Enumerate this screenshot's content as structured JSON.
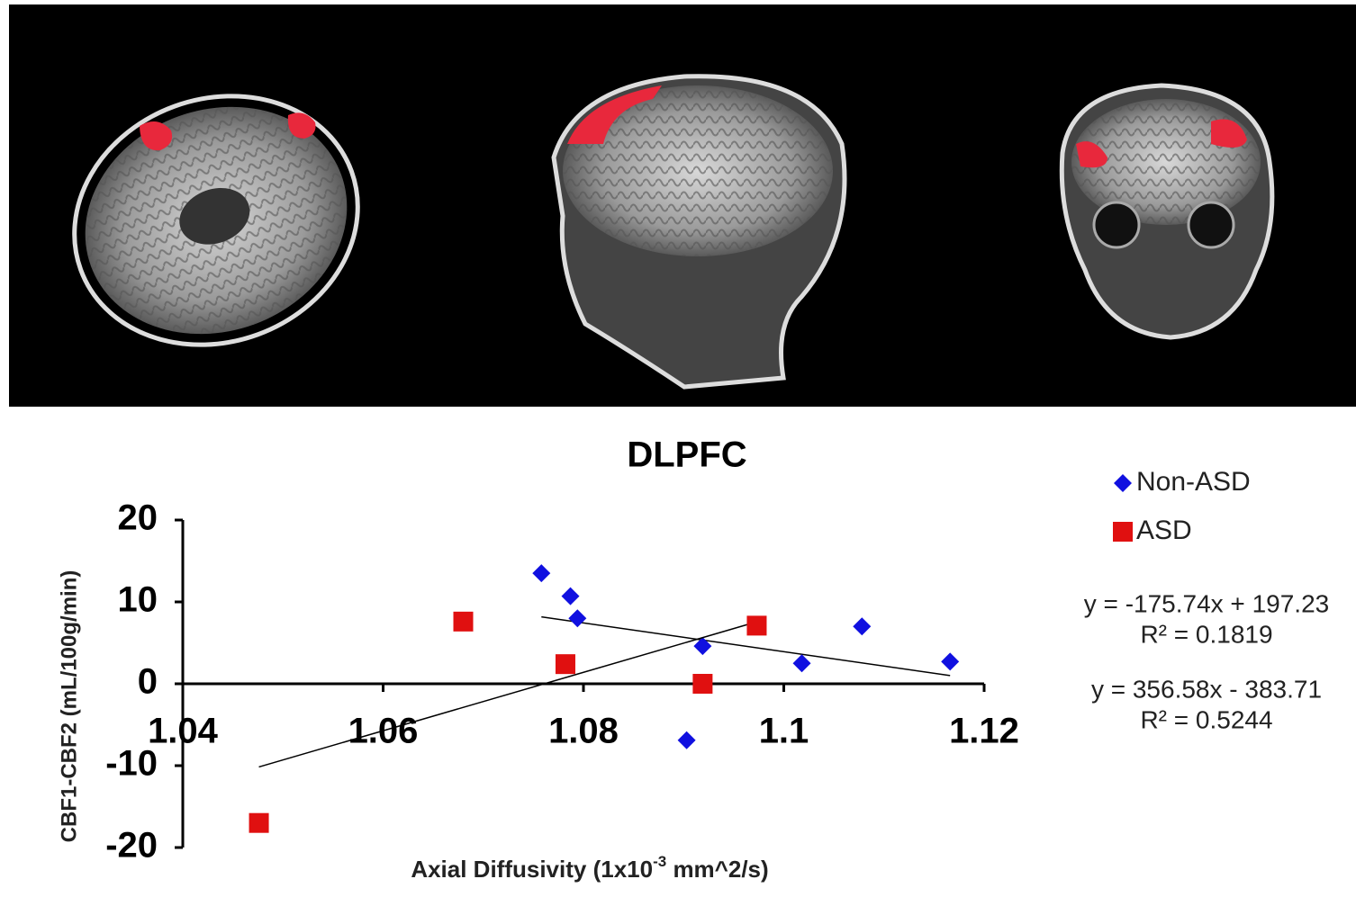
{
  "chart_data": {
    "type": "scatter",
    "title": "DLPFC",
    "xlabel": [
      "Axial Diffusivity  (1x10",
      "-3",
      " mm^2/s)"
    ],
    "ylabel": "CBF1-CBF2  (mL/100g/min)",
    "xlim": [
      1.04,
      1.12
    ],
    "xticks": [
      1.04,
      1.06,
      1.08,
      1.1,
      1.12
    ],
    "ylim": [
      -20,
      20
    ],
    "yticks": [
      -20,
      -10,
      0,
      10,
      20
    ],
    "legend": "right",
    "series": [
      {
        "name": "Non-ASD",
        "color": "#1010e0",
        "marker": "diamond",
        "x": [
          1.0758,
          1.0787,
          1.0794,
          1.0919,
          1.0903,
          1.1018,
          1.1078,
          1.1166
        ],
        "values": [
          13.5,
          10.7,
          8.0,
          4.6,
          -6.9,
          2.5,
          7.0,
          2.7
        ],
        "trendline": {
          "slope": -175.74,
          "intercept": 197.23,
          "equation": "y = -175.74x + 197.23",
          "r_squared": "R² = 0.1819"
        }
      },
      {
        "name": "ASD",
        "color": "#e01010",
        "marker": "square",
        "x": [
          1.0476,
          1.068,
          1.0782,
          1.0919,
          1.0973
        ],
        "values": [
          -17.0,
          7.6,
          2.4,
          0.0,
          7.1
        ],
        "trendline": {
          "slope": 356.58,
          "intercept": -383.71,
          "equation": "y = 356.58x - 383.71",
          "r_squared": "R² = 0.5244"
        }
      }
    ]
  }
}
